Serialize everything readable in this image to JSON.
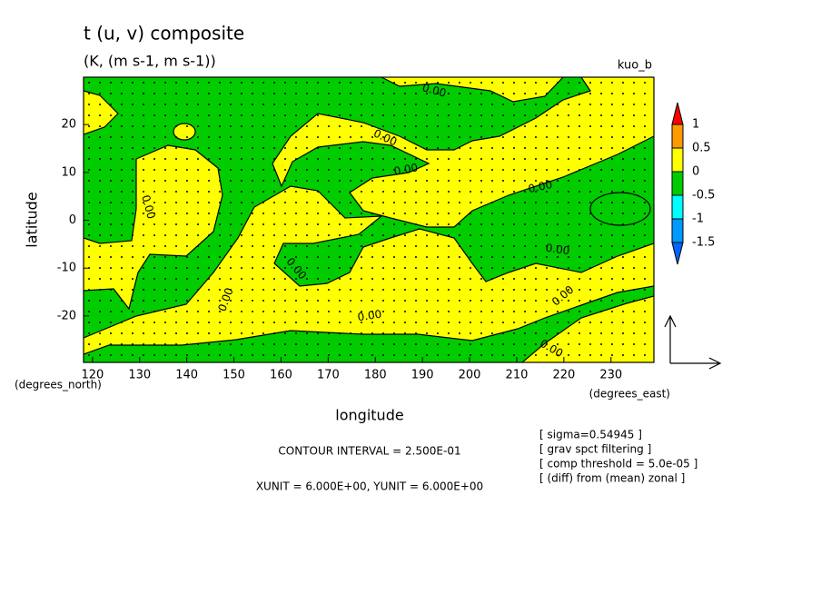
{
  "chart_data": {
    "type": "contour",
    "title": "t (u, v) composite",
    "subtitle": "(K, (m s-1, m s-1))",
    "run_label": "kuo_b",
    "xlabel": "longitude",
    "ylabel": "latitude",
    "x_unit": "(degrees_east)",
    "y_unit": "(degrees_north)",
    "xlim": [
      118.1,
      239.1
    ],
    "ylim": [
      -29.7,
      29.9
    ],
    "xticks": [
      120,
      130,
      140,
      150,
      160,
      170,
      180,
      190,
      200,
      210,
      220,
      230
    ],
    "yticks": [
      -20,
      -10,
      0,
      10,
      20
    ],
    "contour_level": {
      "value": 0,
      "label": "0.00"
    },
    "colorbar": {
      "levels": [
        1,
        0.5,
        0,
        -0.5,
        -1,
        -1.5
      ],
      "colors": [
        "#ff0000",
        "#ff9900",
        "#ffff00",
        "#00cc00",
        "#00ffff",
        "#0099ff",
        "#0066ff"
      ]
    },
    "contour_interval": "CONTOUR INTERVAL = 2.500E-01",
    "vector_units": "XUNIT = 6.000E+00, YUNIT = 6.000E+00",
    "notes": [
      "[ sigma=0.54945 ]",
      "[ grav spct filtering ]",
      "[ comp threshold = 5.0e-05 ]",
      "[ (diff) from (mean) zonal ]"
    ]
  }
}
